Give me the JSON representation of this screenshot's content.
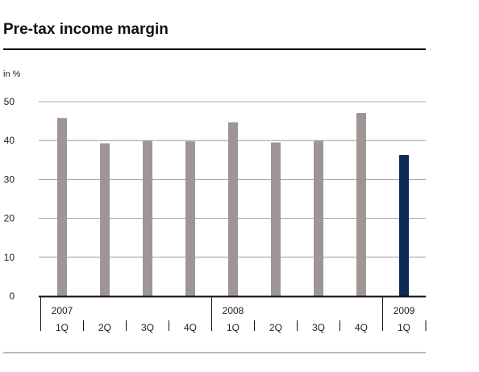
{
  "page": {
    "title": "Pre-tax income margin",
    "unit_label": "in %"
  },
  "chart_data": {
    "type": "bar",
    "title": "Pre-tax income margin",
    "ylabel": "in %",
    "xlabel": "",
    "ylim": [
      0,
      50
    ],
    "yticks": [
      0,
      10,
      20,
      30,
      40,
      50
    ],
    "grid": true,
    "legend": "none",
    "categories": [
      {
        "year": "2007",
        "quarter": "1Q"
      },
      {
        "year": "",
        "quarter": "2Q"
      },
      {
        "year": "",
        "quarter": "3Q"
      },
      {
        "year": "",
        "quarter": "4Q"
      },
      {
        "year": "2008",
        "quarter": "1Q"
      },
      {
        "year": "",
        "quarter": "2Q"
      },
      {
        "year": "",
        "quarter": "3Q"
      },
      {
        "year": "",
        "quarter": "4Q"
      },
      {
        "year": "2009",
        "quarter": "1Q"
      }
    ],
    "values": [
      45.8,
      39.3,
      39.9,
      39.8,
      44.7,
      39.5,
      39.9,
      47.1,
      36.3
    ],
    "colors": {
      "history": "#9e9594",
      "current": "#0d2a55",
      "grid": "#8a8a8a",
      "axis": "#111111"
    },
    "highlight_index": 8
  }
}
